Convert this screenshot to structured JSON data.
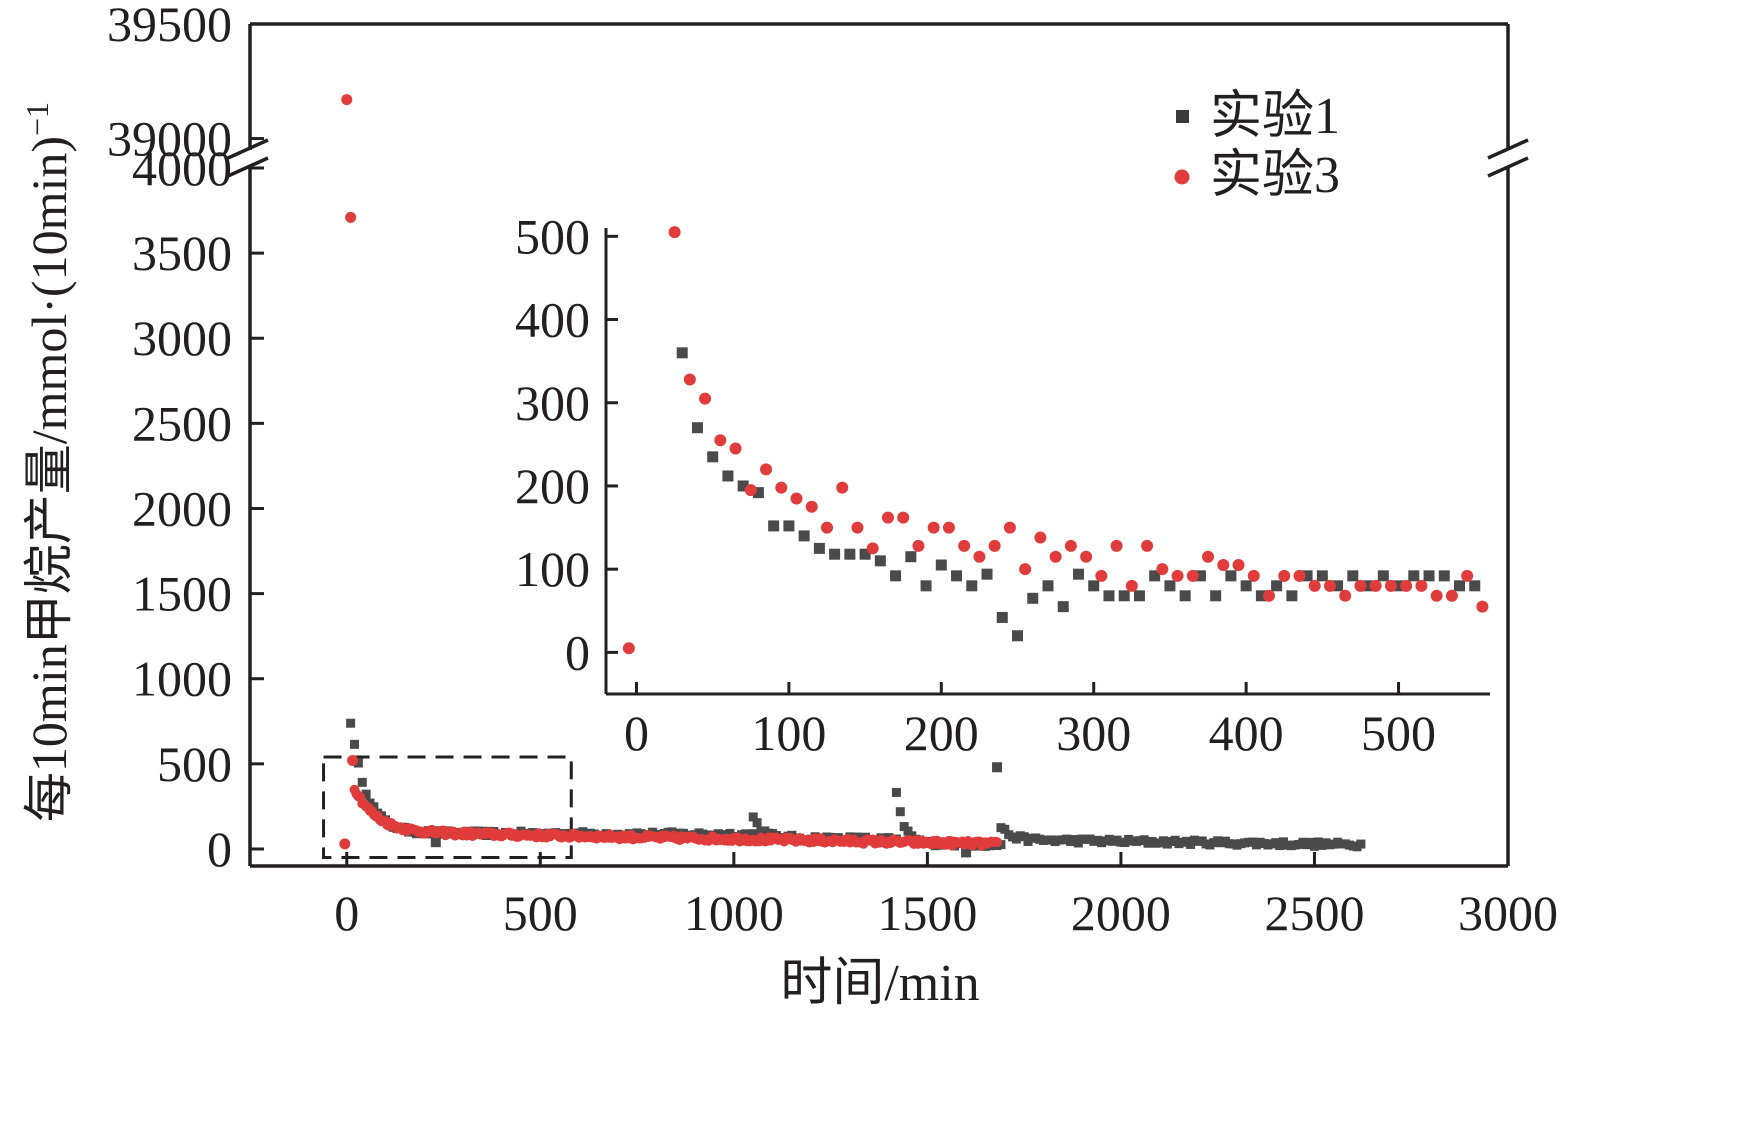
{
  "chart_data": [
    {
      "id": "main",
      "type": "scatter",
      "xlabel": "时间/min",
      "ylabel": "每10min甲烷产量/mmol",
      "ylabel_unit": "·(10min)",
      "ylabel_unit_exp": "−1",
      "xlim": [
        -250,
        3000
      ],
      "x_ticks": [
        0,
        500,
        1000,
        1500,
        2000,
        2500,
        3000
      ],
      "x_tick_labels": [
        "0",
        "500",
        "1000",
        "1500",
        "2000",
        "2500",
        "3000"
      ],
      "y_break": {
        "lower": [
          -100,
          4000
        ],
        "upper": [
          38950,
          39500
        ]
      },
      "y_ticks": [
        0,
        500,
        1000,
        1500,
        2000,
        2500,
        3000,
        3500,
        4000,
        39000,
        39500
      ],
      "y_tick_labels": [
        "0",
        "500",
        "1000",
        "1500",
        "2000",
        "2500",
        "3000",
        "3500",
        "4000",
        "39000",
        "39500"
      ],
      "legend": [
        {
          "name": "实验1",
          "color": "#4a4a4a",
          "marker": "square"
        },
        {
          "name": "实验3",
          "color": "#e03c3c",
          "marker": "circle"
        }
      ],
      "zoom_box": {
        "x": [
          -60,
          580
        ],
        "y": [
          -50,
          540
        ]
      },
      "series": [
        {
          "name": "实验1",
          "color": "#4a4a4a",
          "marker": "square",
          "segments": [
            {
              "start": 10,
              "end": 1050,
              "step": 10,
              "initial": 750,
              "base_start": 95,
              "base_end": 85,
              "tau": 40
            },
            {
              "start": 1050,
              "end": 1420,
              "step": 10,
              "initial": 200,
              "base_start": 70,
              "base_end": 55,
              "tau": 20
            },
            {
              "start": 1420,
              "end": 1690,
              "step": 10,
              "initial": 320,
              "base_start": 35,
              "base_end": 25,
              "tau": 20
            },
            {
              "start": 1690,
              "end": 2620,
              "step": 10,
              "initial": 130,
              "base_start": 55,
              "base_end": 25,
              "tau": 25
            }
          ],
          "points": [
            {
              "x": 1680,
              "y": 480
            },
            {
              "x": 1600,
              "y": -20
            },
            {
              "x": 230,
              "y": 40
            }
          ]
        },
        {
          "name": "实验3",
          "color": "#e03c3c",
          "marker": "circle",
          "segments": [
            {
              "start": 20,
              "end": 1680,
              "step": 5,
              "initial": 360,
              "base_start": 100,
              "base_end": 30,
              "tau": 55
            }
          ],
          "points": [
            {
              "x": 0,
              "y": 39170
            },
            {
              "x": 10,
              "y": 3710
            },
            {
              "x": 15,
              "y": 520
            },
            {
              "x": -5,
              "y": 30
            }
          ]
        }
      ]
    },
    {
      "id": "inset",
      "type": "scatter",
      "xlim": [
        -20,
        560
      ],
      "ylim": [
        -50,
        510
      ],
      "x_ticks": [
        0,
        100,
        200,
        300,
        400,
        500
      ],
      "x_tick_labels": [
        "0",
        "100",
        "200",
        "300",
        "400",
        "500"
      ],
      "y_ticks": [
        0,
        100,
        200,
        300,
        400,
        500
      ],
      "y_tick_labels": [
        "0",
        "100",
        "200",
        "300",
        "400",
        "500"
      ],
      "series": [
        {
          "name": "实验1",
          "color": "#4a4a4a",
          "marker": "square",
          "x": [
            30,
            40,
            50,
            60,
            70,
            80,
            90,
            100,
            110,
            120,
            130,
            140,
            150,
            160,
            170,
            180,
            190,
            200,
            210,
            220,
            230,
            240,
            250,
            260,
            270,
            280,
            290,
            300,
            310,
            320,
            330,
            340,
            350,
            360,
            370,
            380,
            390,
            400,
            410,
            420,
            430,
            440,
            450,
            460,
            470,
            480,
            490,
            500,
            510,
            520,
            530,
            540,
            550
          ],
          "y": [
            360,
            270,
            235,
            212,
            200,
            192,
            152,
            152,
            140,
            125,
            118,
            118,
            118,
            110,
            92,
            115,
            80,
            105,
            92,
            80,
            94,
            42,
            20,
            65,
            80,
            55,
            94,
            80,
            68,
            68,
            68,
            92,
            80,
            68,
            92,
            68,
            92,
            80,
            68,
            80,
            68,
            92,
            92,
            80,
            92,
            80,
            92,
            80,
            92,
            92,
            92,
            80,
            80
          ]
        },
        {
          "name": "实验3",
          "color": "#e03c3c",
          "marker": "circle",
          "x": [
            -5,
            25,
            35,
            45,
            55,
            65,
            75,
            85,
            95,
            105,
            115,
            125,
            135,
            145,
            155,
            165,
            175,
            185,
            195,
            205,
            215,
            225,
            235,
            245,
            255,
            265,
            275,
            285,
            295,
            305,
            315,
            325,
            335,
            345,
            355,
            365,
            375,
            385,
            395,
            405,
            415,
            425,
            435,
            445,
            455,
            465,
            475,
            485,
            495,
            505,
            515,
            525,
            535,
            545,
            555
          ],
          "y": [
            5,
            505,
            328,
            305,
            255,
            245,
            195,
            220,
            198,
            185,
            175,
            150,
            198,
            150,
            125,
            162,
            162,
            128,
            150,
            150,
            128,
            115,
            128,
            150,
            100,
            138,
            115,
            128,
            115,
            92,
            128,
            80,
            128,
            100,
            92,
            92,
            115,
            105,
            105,
            92,
            68,
            92,
            92,
            80,
            80,
            68,
            80,
            80,
            80,
            80,
            80,
            68,
            68,
            92,
            55
          ]
        }
      ]
    }
  ]
}
